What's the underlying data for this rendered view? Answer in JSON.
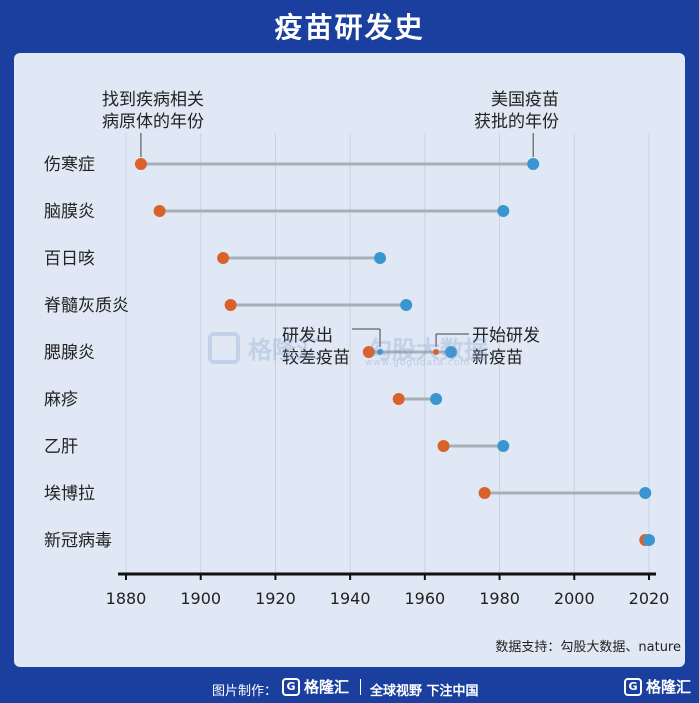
{
  "title": "疫苗研发史",
  "source": "数据支持：勾股大数据、nature",
  "footer": {
    "made_by": "图片制作：",
    "logo": "格隆汇",
    "slogan": "全球视野 下注中国",
    "logo_right": "格隆汇"
  },
  "watermark": {
    "logo": "格隆汇",
    "brand": "勾股大数据",
    "site": "www.gogudata.com"
  },
  "colors": {
    "background": "#1a3f9e",
    "card": "#dfe8f4",
    "discovery": "#d9622b",
    "approval": "#3a96d1",
    "connector": "#a9afb7"
  },
  "chart_data": {
    "type": "dumbbell",
    "xlim": [
      1875,
      2022
    ],
    "xticks": [
      "1880",
      "1900",
      "1920",
      "1940",
      "1960",
      "1980",
      "2000",
      "2020"
    ],
    "grid": true,
    "series": [
      {
        "name": "找到疾病相关病原体的年份",
        "color": "#d9622b"
      },
      {
        "name": "美国疫苗获批的年份",
        "color": "#3a96d1"
      }
    ],
    "rows": [
      {
        "label": "伤寒症",
        "discovered": 1884,
        "approved": 1989
      },
      {
        "label": "脑膜炎",
        "discovered": 1889,
        "approved": 1981
      },
      {
        "label": "百日咳",
        "discovered": 1906,
        "approved": 1948
      },
      {
        "label": "脊髓灰质炎",
        "discovered": 1908,
        "approved": 1955
      },
      {
        "label": "腮腺炎",
        "discovered": 1945,
        "approved": 1967,
        "extra": [
          1948,
          1963
        ]
      },
      {
        "label": "麻疹",
        "discovered": 1953,
        "approved": 1963
      },
      {
        "label": "乙肝",
        "discovered": 1965,
        "approved": 1981
      },
      {
        "label": "埃博拉",
        "discovered": 1976,
        "approved": 2019
      },
      {
        "label": "新冠病毒",
        "discovered": 2019,
        "approved": 2020
      }
    ],
    "annotations": [
      {
        "text": [
          "找到疾病相关",
          "病原体的年份"
        ]
      },
      {
        "text": [
          "美国疫苗",
          "获批的年份"
        ]
      },
      {
        "text": [
          "研发出",
          "较差疫苗"
        ]
      },
      {
        "text": [
          "开始研发",
          "新疫苗"
        ]
      }
    ]
  }
}
